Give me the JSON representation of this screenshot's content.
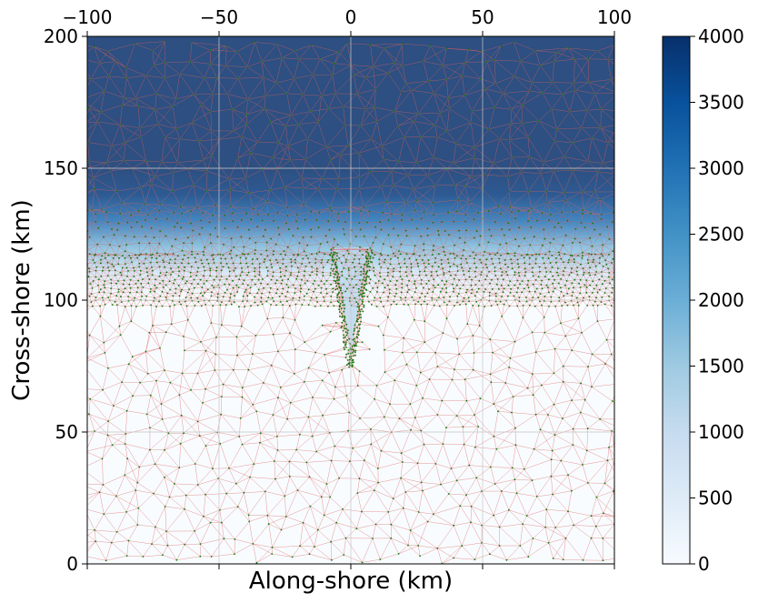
{
  "chart_data": {
    "type": "heatmap",
    "title": "",
    "xlabel": "Along-shore (km)",
    "ylabel": "Cross-shore (km)",
    "xlim": [
      -100,
      100
    ],
    "ylim": [
      0,
      200
    ],
    "x_ticks": [
      -100,
      -50,
      0,
      50,
      100
    ],
    "x_tick_labels": [
      "−100",
      "−50",
      "0",
      "50",
      "100"
    ],
    "x_tick_position": "top",
    "y_ticks": [
      0,
      50,
      100,
      150,
      200
    ],
    "y_tick_labels": [
      "0",
      "50",
      "100",
      "150",
      "200"
    ],
    "grid": true,
    "colorbar": {
      "range": [
        0,
        4000
      ],
      "ticks": [
        0,
        500,
        1000,
        1500,
        2000,
        2500,
        3000,
        3500,
        4000
      ],
      "tick_labels": [
        "0",
        "500",
        "1000",
        "1500",
        "2000",
        "2500",
        "3000",
        "3500",
        "4000"
      ],
      "colormap": "Blues",
      "colors": [
        "#f7fbff",
        "#deebf7",
        "#c6dbef",
        "#9ecae1",
        "#6baed6",
        "#4292c6",
        "#2171b5",
        "#08519c",
        "#08306b"
      ]
    },
    "depth_field": [
      {
        "cross_shore": 0,
        "depth": 0
      },
      {
        "cross_shore": 100,
        "depth": 0
      },
      {
        "cross_shore": 110,
        "depth": 700
      },
      {
        "cross_shore": 120,
        "depth": 1800
      },
      {
        "cross_shore": 130,
        "depth": 3000
      },
      {
        "cross_shore": 140,
        "depth": 3800
      },
      {
        "cross_shore": 150,
        "depth": 4000
      },
      {
        "cross_shore": 200,
        "depth": 4000
      }
    ],
    "canyon": {
      "axis_along_shore": 0,
      "head_cross_shore": 75,
      "mouth_cross_shore": 120,
      "mouth_half_width": 8
    },
    "mesh": {
      "edge_color": "#e06060",
      "node_color": "#0a7a0a",
      "refined_band_cross_shore": [
        100,
        125
      ]
    }
  }
}
